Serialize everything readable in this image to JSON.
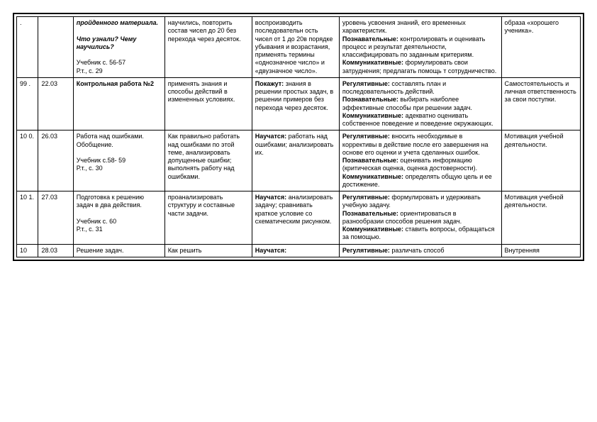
{
  "rows": [
    {
      "c1": ".",
      "c2": "",
      "c3": "<b><i>пройденного материала.</i></b><br><br><b><i>Что узнали? Чему научились?</i></b><br><br>Учебник с. 56-57<br>Р.т., с. 29",
      "c4": "научились, повторить состав чисел до 20 без перехода через десяток.",
      "c5": "воспроизводить последовательн ость чисел от 1 до 20в порядке убывания и возрастания, применять термины «однозначное число» и «двузначное число».",
      "c6": "уровень усвоения знаний, его временных характеристик.<br><b>Познавательные:</b> контролировать и оценивать процесс и результат деятельности, классифицировать по заданным критериям.<br><b>Коммуникативные:</b> формулировать свои затруднения; предлагать помощь т сотрудничество.",
      "c7": "образа «хорошего ученика»."
    },
    {
      "c1": "99 .",
      "c2": "22.03",
      "c3": "<b>Контрольная работа №2</b>",
      "c4": "применять знания и способы действий в измененных условиях.",
      "c5": "<b>Покажут:</b> знания в решении простых задач, в решении примеров без перехода через десяток.",
      "c6": "<b>Регулятивные:</b> составлять план и последовательность действий.<br><b>Познавательные:</b> выбирать наиболее эффективные способы при решении задач.<br><b>Коммуникативные:</b> адекватно оценивать собственное поведение и поведение окружающих.",
      "c7": "Самостоятельность и личная ответственность за свои поступки."
    },
    {
      "c1": "10 0.",
      "c2": "26.03",
      "c3": "Работа над ошибками. Обобщение.<br><br>Учебник с.58- 59<br>Р.т., с. 30",
      "c4": "Как правильно работать над ошибками по этой теме, анализировать допущенные ошибки; выполнять работу над ошибками.",
      "c5": "<b>Научатся:</b> работать над ошибками; анализировать их.",
      "c6": "<b>Регулятивные:</b> вносить необходимые  в коррективы в действие после его завершения на основе его оценки и учета сделанных ошибок.<br><b>Познавательные:</b> оценивать информацию (критическая оценка, оценка достоверности).<br><b>Коммуникативные:</b> определять общую цель и ее достижение.",
      "c7": "Мотивация учебной деятельности."
    },
    {
      "c1": "10 1.",
      "c2": "27.03",
      "c3": "Подготовка к решению задач в два действия.<br><br>Учебник с. 60<br>Р.т., с. 31",
      "c4": "проанализировать структуру и составные части задачи.",
      "c5": "<b>Научатся:</b> анализировать задачу; сравнивать краткое условие со схематическим рисунком.",
      "c6": "<b>Регулятивные:</b> формулировать и удерживать учебную задачу.<br><b>Познавательные:</b> ориентироваться в разнообразии способов решения задач.<br><b>Коммуникативные:</b> ставить вопросы, обращаться за помощью.",
      "c7": "Мотивация учебной деятельности."
    },
    {
      "c1": "10",
      "c2": "28.03",
      "c3": "Решение задач.",
      "c4": "Как решить",
      "c5": "<b>Научатся:</b>",
      "c6": "<b>Регулятивные:</b> различать способ",
      "c7": "Внутренняя"
    }
  ]
}
